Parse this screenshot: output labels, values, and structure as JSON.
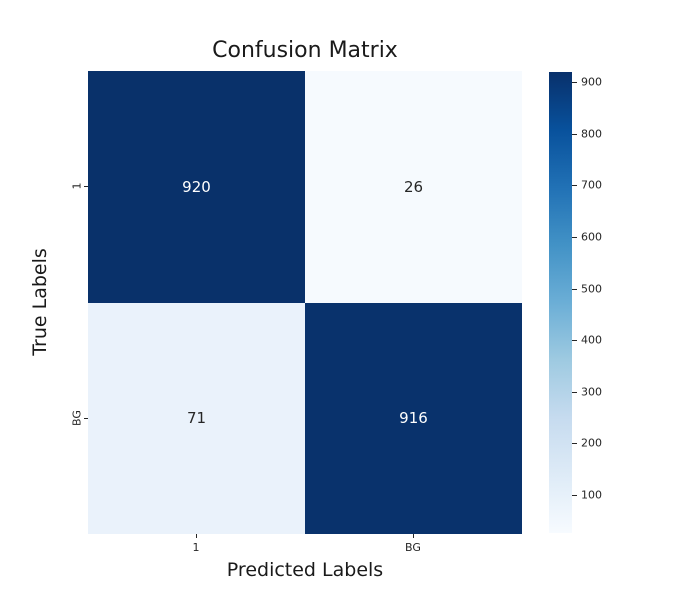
{
  "chart_data": {
    "type": "heatmap",
    "title": "Confusion Matrix",
    "xlabel": "Predicted Labels",
    "ylabel": "True Labels",
    "x_categories": [
      "1",
      "BG"
    ],
    "y_categories": [
      "1",
      "BG"
    ],
    "matrix": [
      [
        920,
        26
      ],
      [
        71,
        916
      ]
    ],
    "vmin": 26,
    "vmax": 920,
    "colormap": "Blues",
    "colorbar_position": "right",
    "colorbar_ticks": [
      900,
      800,
      700,
      600,
      500,
      400,
      300,
      200,
      100
    ],
    "grid": false,
    "cell_colors": [
      [
        "#09316a",
        "#f6fafe"
      ],
      [
        "#eaf2fb",
        "#09326c"
      ]
    ],
    "annot_colors": [
      [
        "#ffffff",
        "#262626"
      ],
      [
        "#262626",
        "#ffffff"
      ]
    ],
    "colormap_stops": [
      "#f7fbff",
      "#deebf7",
      "#c6dbef",
      "#9ecae1",
      "#6baed6",
      "#4292c6",
      "#2171b5",
      "#08519c",
      "#08306b"
    ]
  },
  "colors": {
    "background": "#ffffff",
    "text": "#1a1a1a",
    "tick": "#262626",
    "annot_light": "#ffffff",
    "annot_dark": "#262626",
    "max_color": "#08306b",
    "min_color": "#f7fbff"
  }
}
